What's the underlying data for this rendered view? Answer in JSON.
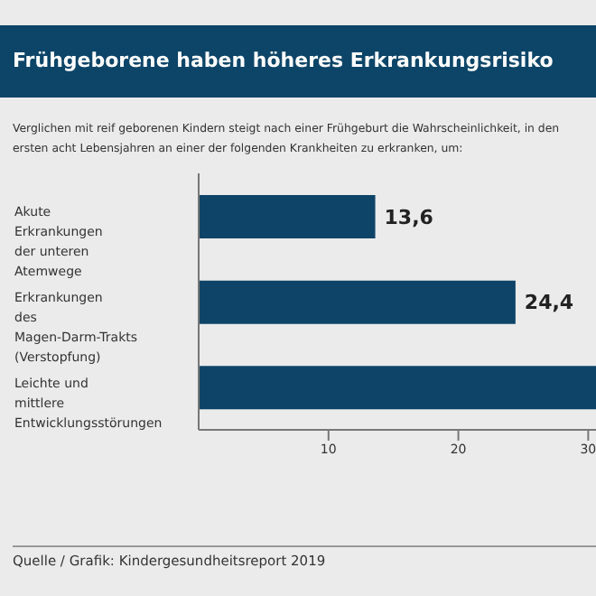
{
  "chart_data": {
    "type": "bar",
    "orientation": "horizontal",
    "title": "Frühgeborene haben höheres Erkrankungsrisiko",
    "subtitle": "Verglichen mit reif geborenen Kindern steigt nach einer Frühgeburt die Wahrscheinlichkeit, in den ersten acht Lebensjahren an einer der folgenden Krankheiten zu erkranken, um:",
    "categories": [
      "Akute Erkrankungen der unteren Atemwege",
      "Erkrankungen des Magen-Darm-Trakts (Verstopfung)",
      "Leichte und mittlere Entwicklungsstörungen"
    ],
    "values": [
      13.6,
      24.4,
      30.6
    ],
    "value_labels": [
      "13,6",
      "24,4",
      null
    ],
    "color": "#0e4468",
    "xlim": [
      0,
      30.6
    ],
    "xticks": [
      10,
      20,
      30
    ],
    "grid": false,
    "legend": false,
    "annotations": [
      "Quelle / Grafik: Kindergesundheitsreport 2019"
    ]
  }
}
